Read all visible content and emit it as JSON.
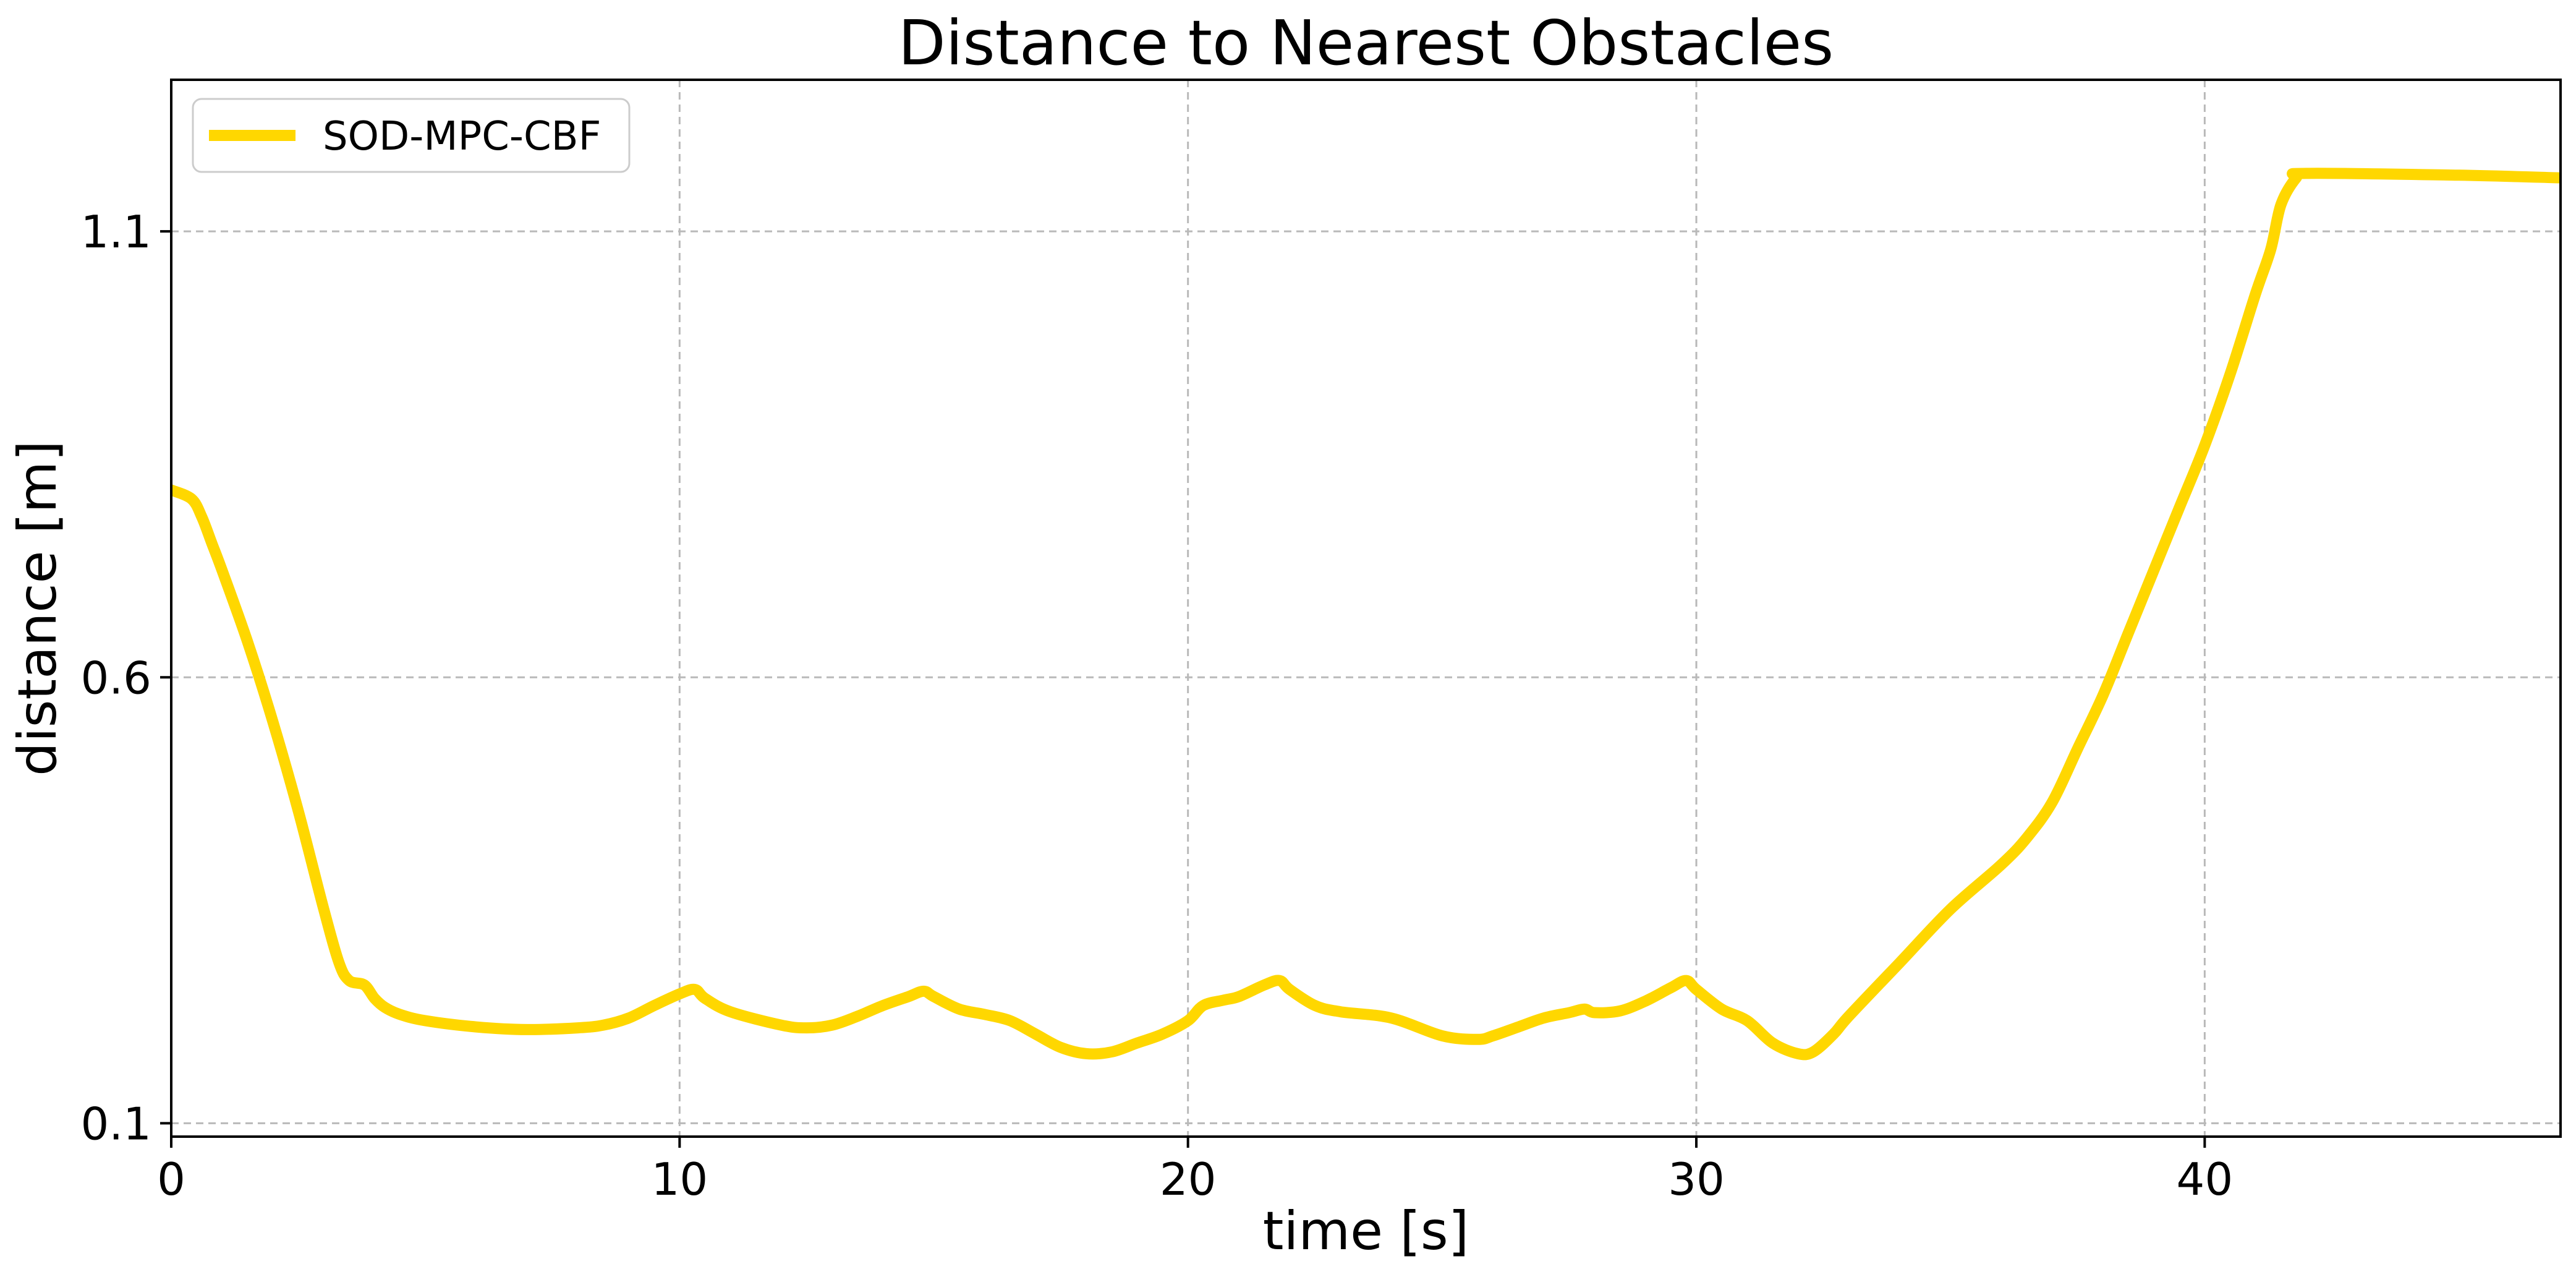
{
  "chart_data": {
    "type": "line",
    "title": "Distance to Nearest Obstacles",
    "xlabel": "time [s]",
    "ylabel": "distance [m]",
    "xlim": [
      0,
      47
    ],
    "ylim": [
      0.085,
      1.27
    ],
    "xticks": [
      0,
      10,
      20,
      30,
      40
    ],
    "yticks": [
      0.1,
      0.6,
      1.1
    ],
    "xtick_labels": [
      "0",
      "10",
      "20",
      "30",
      "40"
    ],
    "ytick_labels": [
      "0.1",
      "0.6",
      "1.1"
    ],
    "grid": true,
    "legend_position": "top-left",
    "series": [
      {
        "name": "SOD-MPC-CBF",
        "color": "#FFD700",
        "x": [
          0,
          0.4,
          0.6,
          0.8,
          1.0,
          1.5,
          2.0,
          2.5,
          3.0,
          3.3,
          3.5,
          3.8,
          4.0,
          4.2,
          4.5,
          5.0,
          6.0,
          7.0,
          8.0,
          8.5,
          9.0,
          9.5,
          10.0,
          10.3,
          10.5,
          11.0,
          12.0,
          12.5,
          13.0,
          13.5,
          14.0,
          14.5,
          14.8,
          15.0,
          15.5,
          16.0,
          16.5,
          17.0,
          17.5,
          18.0,
          18.5,
          19.0,
          19.5,
          20.0,
          20.3,
          20.7,
          21.0,
          21.5,
          21.8,
          22.0,
          22.5,
          23.0,
          24.0,
          25.0,
          25.7,
          26.0,
          26.5,
          27.0,
          27.5,
          27.8,
          28.0,
          28.5,
          29.0,
          29.5,
          29.8,
          30.0,
          30.5,
          31.0,
          31.5,
          32.0,
          32.3,
          32.7,
          33.0,
          34.0,
          35.0,
          36.0,
          36.5,
          37.0,
          37.5,
          38.0,
          38.5,
          39.0,
          39.5,
          40.0,
          40.5,
          41.0,
          41.3,
          41.5,
          41.8,
          42.0,
          45.0,
          47.0
        ],
        "values": [
          0.81,
          0.8,
          0.78,
          0.75,
          0.72,
          0.64,
          0.55,
          0.45,
          0.34,
          0.28,
          0.26,
          0.255,
          0.24,
          0.23,
          0.222,
          0.215,
          0.208,
          0.205,
          0.207,
          0.21,
          0.218,
          0.232,
          0.245,
          0.25,
          0.24,
          0.225,
          0.21,
          0.207,
          0.21,
          0.22,
          0.232,
          0.242,
          0.248,
          0.242,
          0.228,
          0.222,
          0.215,
          0.2,
          0.185,
          0.178,
          0.18,
          0.19,
          0.2,
          0.215,
          0.232,
          0.238,
          0.242,
          0.255,
          0.26,
          0.25,
          0.232,
          0.225,
          0.218,
          0.198,
          0.194,
          0.198,
          0.208,
          0.218,
          0.224,
          0.228,
          0.224,
          0.226,
          0.237,
          0.252,
          0.26,
          0.25,
          0.228,
          0.215,
          0.19,
          0.178,
          0.18,
          0.2,
          0.22,
          0.28,
          0.34,
          0.39,
          0.42,
          0.46,
          0.52,
          0.58,
          0.65,
          0.72,
          0.79,
          0.86,
          0.94,
          1.03,
          1.08,
          1.13,
          1.16,
          1.165,
          1.163,
          1.16
        ]
      }
    ]
  }
}
